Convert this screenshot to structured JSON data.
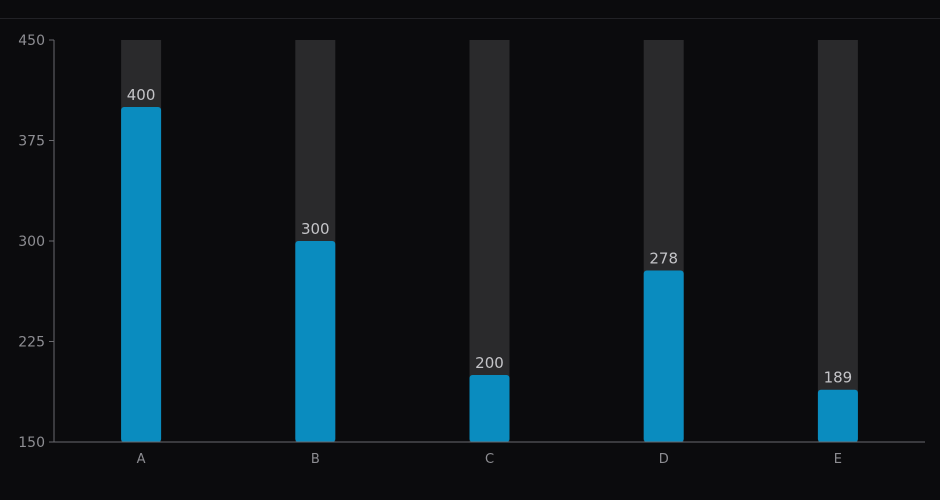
{
  "chart_data": {
    "type": "bar",
    "categories": [
      "A",
      "B",
      "C",
      "D",
      "E"
    ],
    "values": [
      400,
      300,
      200,
      278,
      189
    ],
    "ylim": [
      150,
      450
    ],
    "yticks": [
      150,
      225,
      300,
      375,
      450
    ],
    "data_labels": [
      "400",
      "300",
      "200",
      "278",
      "189"
    ],
    "title": "",
    "xlabel": "",
    "ylabel": "",
    "grid": false,
    "background_track": true,
    "colors": {
      "bar": "#0a8cbf",
      "track": "#2a2a2c",
      "axis": "#6a6a6e",
      "background": "#0b0b0d"
    }
  }
}
